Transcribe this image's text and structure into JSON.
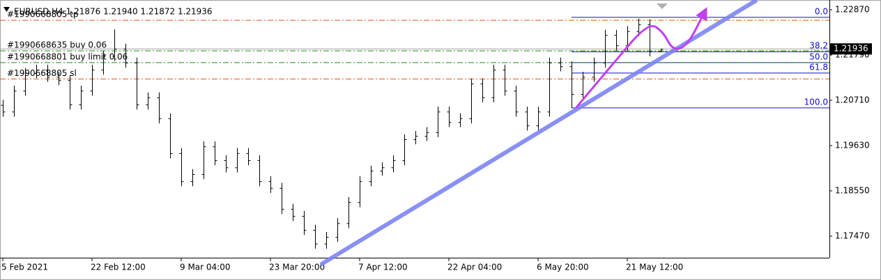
{
  "chart_data": {
    "type": "ohlc",
    "title": "EURUSD,H4  1.21876 1.21940 1.21872 1.21936",
    "open": [
      1.206,
      1.2044,
      1.2094,
      1.2136,
      1.2144,
      1.2127,
      1.2119,
      1.2061,
      1.2094,
      1.2144,
      1.2177,
      1.2194,
      1.2161,
      1.2061,
      1.2078,
      1.2028,
      1.1945,
      1.1878,
      1.1895,
      1.1961,
      1.1928,
      1.1911,
      1.1945,
      1.1928,
      1.1878,
      1.1862,
      1.1812,
      1.1795,
      1.1762,
      1.1729,
      1.1745,
      1.1778,
      1.1828,
      1.1878,
      1.1903,
      1.1911,
      1.1928,
      1.1978,
      1.1986,
      1.1995,
      1.2044,
      1.2019,
      1.2028,
      1.2111,
      1.2078,
      1.2144,
      1.2094,
      1.2044,
      1.2011,
      1.2044,
      1.2161,
      1.2152,
      1.2086,
      1.2127,
      1.2161,
      1.2227,
      1.2202,
      1.2236,
      1.2252,
      1.21876
    ],
    "high": [
      1.2072,
      1.2106,
      1.2148,
      1.2156,
      1.2156,
      1.2139,
      1.2131,
      1.2106,
      1.2156,
      1.2189,
      1.224,
      1.2206,
      1.2173,
      1.209,
      1.209,
      1.204,
      1.1957,
      1.1907,
      1.1973,
      1.1973,
      1.194,
      1.1957,
      1.1957,
      1.194,
      1.189,
      1.1874,
      1.1824,
      1.1807,
      1.1774,
      1.1757,
      1.179,
      1.184,
      1.189,
      1.1915,
      1.1923,
      1.194,
      1.199,
      1.1998,
      1.2007,
      1.2056,
      1.2056,
      1.204,
      1.2123,
      1.2123,
      1.2156,
      1.2156,
      1.2106,
      1.2056,
      1.2056,
      1.2173,
      1.2173,
      1.2164,
      1.2139,
      1.2173,
      1.2239,
      1.2239,
      1.2248,
      1.2266,
      1.2264,
      1.2194
    ],
    "low": [
      1.2032,
      1.2032,
      1.2082,
      1.2124,
      1.2115,
      1.2107,
      1.2049,
      1.2049,
      1.2082,
      1.2132,
      1.2165,
      1.2149,
      1.2049,
      1.2049,
      1.2016,
      1.1933,
      1.1866,
      1.1866,
      1.1883,
      1.1916,
      1.1899,
      1.1899,
      1.1916,
      1.1866,
      1.185,
      1.18,
      1.1783,
      1.175,
      1.1717,
      1.1717,
      1.1733,
      1.1766,
      1.1816,
      1.1866,
      1.1891,
      1.1899,
      1.1916,
      1.1966,
      1.1974,
      1.1983,
      1.2007,
      1.2007,
      1.2016,
      1.2066,
      1.2066,
      1.2082,
      1.2032,
      1.1999,
      1.1999,
      1.2032,
      1.214,
      1.2052,
      1.2074,
      1.2115,
      1.2149,
      1.219,
      1.219,
      1.2224,
      1.2176,
      1.21872
    ],
    "close": [
      1.2044,
      1.2094,
      1.2136,
      1.2144,
      1.2127,
      1.2119,
      1.2061,
      1.2094,
      1.2144,
      1.2177,
      1.2194,
      1.2161,
      1.2061,
      1.2078,
      1.2028,
      1.1945,
      1.1878,
      1.1895,
      1.1961,
      1.1928,
      1.1911,
      1.1945,
      1.1928,
      1.1878,
      1.1862,
      1.1812,
      1.1795,
      1.1762,
      1.1729,
      1.1745,
      1.1778,
      1.1828,
      1.1878,
      1.1903,
      1.1911,
      1.1928,
      1.1978,
      1.1986,
      1.1995,
      1.2044,
      1.2019,
      1.2028,
      1.2111,
      1.2078,
      1.2144,
      1.2094,
      1.2044,
      1.2011,
      1.2044,
      1.2161,
      1.2152,
      1.2086,
      1.2127,
      1.2161,
      1.2227,
      1.2202,
      1.2236,
      1.2252,
      1.2188,
      1.21936
    ],
    "color": "#000000",
    "xlim": [
      -0.25,
      74.125
    ],
    "ylim": [
      1.16955,
      1.23103
    ],
    "xticks": [
      {
        "value": 0,
        "label": "5 Feb 2021"
      },
      {
        "value": 8,
        "label": "22 Feb 12:00"
      },
      {
        "value": 16,
        "label": "9 Mar 04:00"
      },
      {
        "value": 24,
        "label": "23 Mar 20:00"
      },
      {
        "value": 32,
        "label": "7 Apr 12:00"
      },
      {
        "value": 40,
        "label": "22 Apr 04:00"
      },
      {
        "value": 48,
        "label": "6 May 20:00"
      },
      {
        "value": 56,
        "label": "21 May 12:00"
      }
    ],
    "yticks": [
      {
        "value": 1.2287,
        "label": "1.22870"
      },
      {
        "value": 1.2179,
        "label": "1.21790"
      },
      {
        "value": 1.2071,
        "label": "1.20710"
      },
      {
        "value": 1.1963,
        "label": "1.19630"
      },
      {
        "value": 1.1855,
        "label": "1.18550"
      },
      {
        "value": 1.1747,
        "label": "1.17470"
      }
    ],
    "last_price": 1.21936,
    "orders": [
      {
        "label": "#1990668805 tp",
        "price": 1.2262,
        "color": "#e0501a"
      },
      {
        "label": "#1990668635 buy 0.06",
        "price": 1.2189,
        "color": "#1a8a1a"
      },
      {
        "label": "#1990668801 buy limit 0.06",
        "price": 1.2161,
        "color": "#1a8a1a"
      },
      {
        "label": "#1990668805 sl",
        "price": 1.2122,
        "color": "#e0501a"
      }
    ],
    "fibonacci": {
      "from_x": 51,
      "color": "#1010c0",
      "levels": [
        {
          "label": "0.0",
          "price": 1.2269
        },
        {
          "label": "38.2",
          "price": 1.2187
        },
        {
          "label": "50.0",
          "price": 1.2161
        },
        {
          "label": "61.8",
          "price": 1.2136
        },
        {
          "label": "100.0",
          "price": 1.2053
        }
      ]
    },
    "trendline": {
      "x": [
        28.5,
        67.6
      ],
      "y": [
        1.1679,
        1.231
      ],
      "color": "#7c84f4"
    },
    "arrow_path": {
      "x": [
        51.4,
        54.8,
        57.9,
        59.2,
        60.1,
        61.4,
        62.9
      ],
      "y": [
        1.2053,
        1.2161,
        1.2257,
        1.2235,
        1.2189,
        1.2202,
        1.228
      ],
      "color": "#c040f0"
    }
  }
}
